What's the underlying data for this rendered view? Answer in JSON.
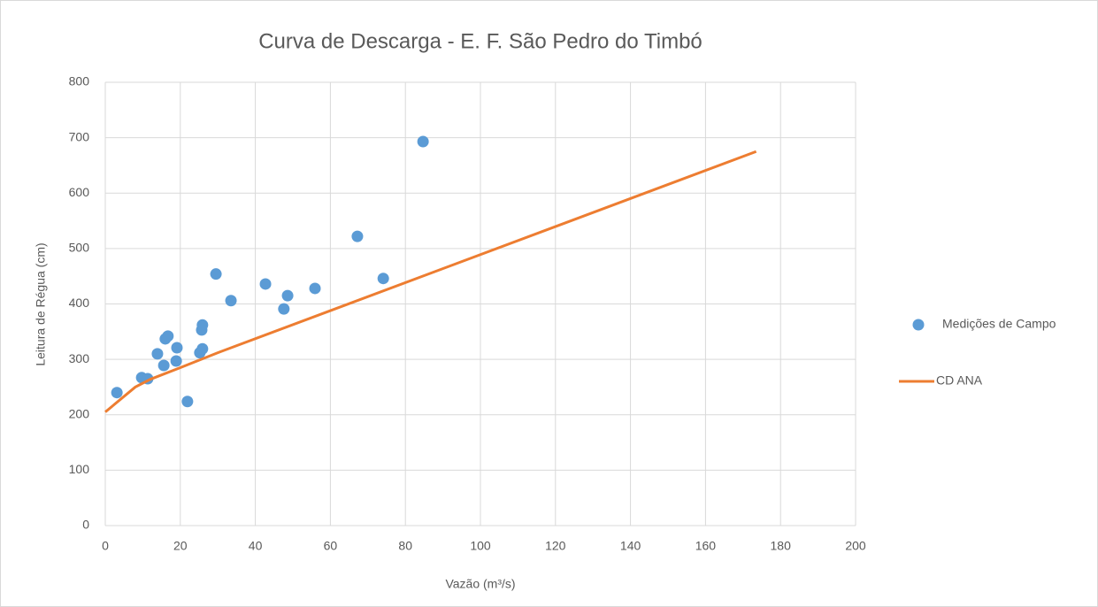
{
  "chart_data": {
    "type": "scatter",
    "title": "Curva de Descarga - E. F. São Pedro do Timbó",
    "xlabel": "Vazão (m³/s)",
    "ylabel": "Leitura de Régua (cm)",
    "xlim": [
      0,
      200
    ],
    "xticks": [
      0,
      20,
      40,
      60,
      80,
      100,
      120,
      140,
      160,
      180,
      200
    ],
    "ylim": [
      0,
      800
    ],
    "yticks": [
      0,
      100,
      200,
      300,
      400,
      500,
      600,
      700,
      800
    ],
    "grid": true,
    "legend": "right",
    "series": [
      {
        "name": "Medições de Campo",
        "type": "scatter",
        "color": "#5b9bd5",
        "x": [
          3.1,
          9.7,
          11.3,
          13.9,
          15.6,
          16.0,
          16.7,
          18.9,
          19.1,
          21.9,
          25.2,
          25.7,
          25.9,
          25.9,
          29.5,
          33.5,
          42.7,
          47.6,
          48.6,
          55.9,
          67.2,
          74.1,
          84.7
        ],
        "values": [
          240,
          267,
          265,
          310,
          289,
          337,
          342,
          297,
          321,
          224,
          312,
          353,
          362,
          319,
          454,
          406,
          436,
          391,
          415,
          428,
          522,
          446,
          693
        ]
      },
      {
        "name": "CD ANA",
        "type": "line",
        "color": "#ed7d31",
        "x": [
          0,
          8,
          12,
          20,
          30,
          173.5
        ],
        "values": [
          205,
          250,
          264,
          285,
          312,
          675
        ]
      }
    ]
  }
}
